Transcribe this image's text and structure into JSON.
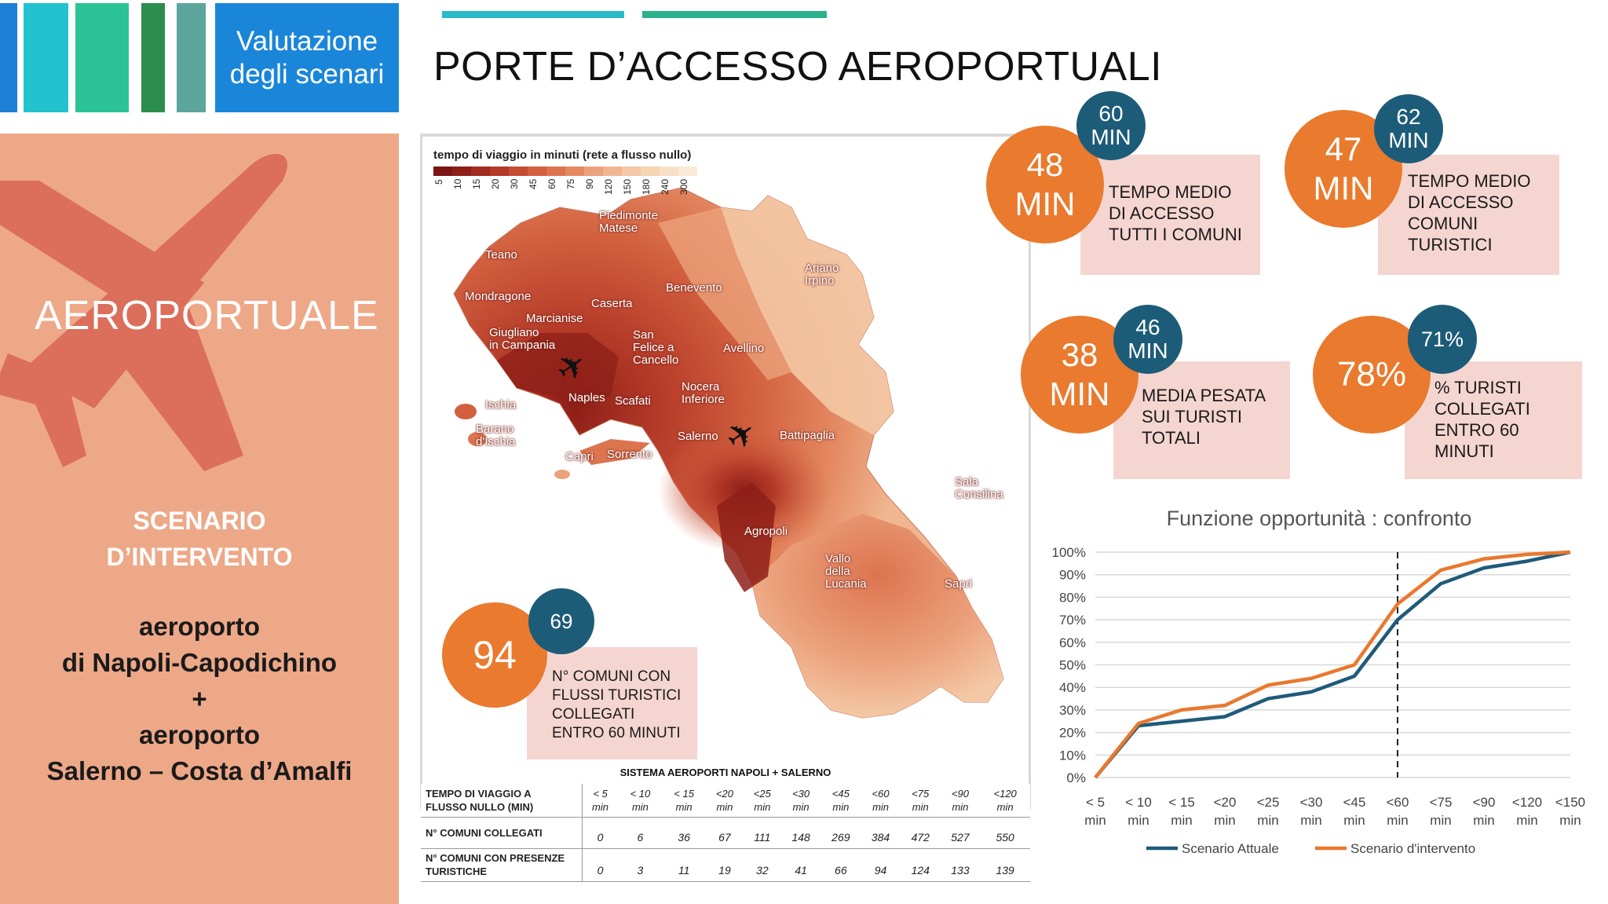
{
  "header": {
    "tab_label": "Valutazione\ndegli scenari",
    "title": "PORTE D’ACCESSO AEROPORTUALI"
  },
  "left_panel": {
    "title": "AEROPORTUALE",
    "scenario": "SCENARIO\nD’INTERVENTO",
    "airports": "aeroporto\ndi Napoli-Capodichino\n+\naeroporto\nSalerno – Costa d’Amalfi"
  },
  "map": {
    "legend_title": "tempo di viaggio in minuti (rete a flusso nullo)",
    "legend_ticks": [
      "5",
      "10",
      "15",
      "20",
      "30",
      "45",
      "60",
      "75",
      "90",
      "120",
      "150",
      "180",
      "240",
      "300"
    ],
    "legend_colors": [
      "#7a1512",
      "#8e1f18",
      "#a22c20",
      "#b43a28",
      "#c44c33",
      "#d2603f",
      "#dc7450",
      "#e48a63",
      "#eba17b",
      "#f0b690",
      "#f4c8a5",
      "#f6d5b5",
      "#f8e0c6",
      "#faead7"
    ],
    "cities": {
      "piedimonte": "Piedimonte\nMatese",
      "teano": "Teano",
      "ariano": "Ariano\nIrpino",
      "benevento": "Benevento",
      "mondragone": "Mondragone",
      "caserta": "Caserta",
      "marcianise": "Marcianise",
      "giugliano": "Giugliano\nin Campania",
      "sanfelice": "San\nFelice a\nCancello",
      "avellino": "Avellino",
      "naples": "Naples",
      "scafati": "Scafati",
      "nocera": "Nocera\nInferiore",
      "ischia": "Ischia",
      "barano": "Barano\nd'Ischia",
      "salerno": "Salerno",
      "battipaglia": "Battipaglia",
      "capri": "Capri",
      "sorrento": "Sorrento",
      "sala": "Sala\nConsilina",
      "agropoli": "Agropoli",
      "vallo": "Vallo\ndella\nLucania",
      "sapri": "Sapri"
    },
    "kpi": {
      "value": "94",
      "badge": "69",
      "label": "N° COMUNI CON\nFLUSSI TURISTICI\nCOLLEGATI\nENTRO 60 MINUTI"
    }
  },
  "kpis": [
    {
      "value": "48\nMIN",
      "badge": "60\nMIN",
      "label": "TEMPO MEDIO\nDI ACCESSO\nTUTTI I COMUNI"
    },
    {
      "value": "47\nMIN",
      "badge": "62\nMIN",
      "label": "TEMPO MEDIO\nDI ACCESSO\nCOMUNI\nTURISTICI"
    },
    {
      "value": "38\nMIN",
      "badge": "46\nMIN",
      "label": "MEDIA PESATA\nSUI TURISTI\nTOTALI"
    },
    {
      "value": "78%",
      "badge": "71%",
      "label": "% TURISTI\nCOLLEGATI\nENTRO 60\nMINUTI"
    }
  ],
  "table": {
    "caption": "SISTEMA AEROPORTI NAPOLI + SALERNO",
    "header_label": "TEMPO DI VIAGGIO A\nFLUSSO NULLO (MIN)",
    "columns": [
      "< 5\nmin",
      "< 10\nmin",
      "< 15\nmin",
      "<20\nmin",
      "<25\nmin",
      "<30\nmin",
      "<45\nmin",
      "<60\nmin",
      "<75\nmin",
      "<90\nmin",
      "<120\nmin"
    ],
    "rows": [
      {
        "label": "N° COMUNI COLLEGATI",
        "values": [
          "0",
          "6",
          "36",
          "67",
          "111",
          "148",
          "269",
          "384",
          "472",
          "527",
          "550"
        ]
      },
      {
        "label": "N° COMUNI CON PRESENZE\nTURISTICHE",
        "values": [
          "0",
          "3",
          "11",
          "19",
          "32",
          "41",
          "66",
          "94",
          "124",
          "133",
          "139"
        ]
      }
    ]
  },
  "chart_data": {
    "type": "line",
    "title": "Funzione opportunità : confronto",
    "categories": [
      "< 5 min",
      "< 10 min",
      "< 15 min",
      "<20 min",
      "<25 min",
      "<30 min",
      "<45 min",
      "<60 min",
      "<75 min",
      "<90 min",
      "<120 min",
      "<150 min"
    ],
    "y_ticks": [
      "0%",
      "10%",
      "20%",
      "30%",
      "40%",
      "50%",
      "60%",
      "70%",
      "80%",
      "90%",
      "100%"
    ],
    "ylim": [
      0,
      100
    ],
    "grid": true,
    "legend_position": "bottom",
    "marker_line_at": "<60 min",
    "series": [
      {
        "name": "Scenario Attuale",
        "color": "#1f5a7a",
        "values": [
          0,
          23,
          25,
          27,
          35,
          38,
          45,
          70,
          86,
          93,
          96,
          100
        ]
      },
      {
        "name": "Scenario d'intervento",
        "color": "#e9782e",
        "values": [
          0,
          24,
          30,
          32,
          41,
          44,
          50,
          77,
          92,
          97,
          99,
          100
        ]
      }
    ]
  }
}
